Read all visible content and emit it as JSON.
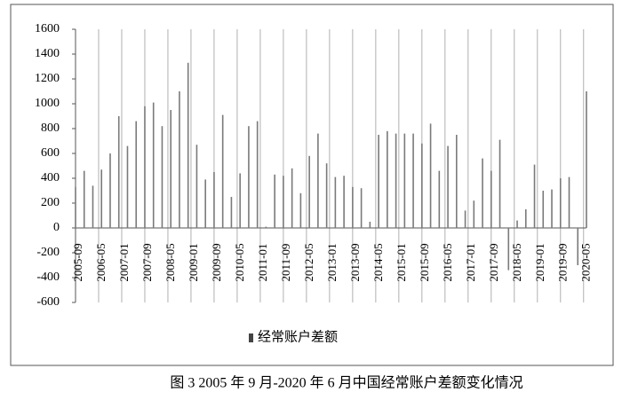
{
  "chart_data": {
    "type": "bar",
    "legend": "经常账户差额",
    "caption": "图 3 2005 年 9 月-2020 年 6 月中国经常账户差额变化情况",
    "color": "#7a7a7a",
    "grid": true,
    "legend_position": "bottom",
    "ylim": [
      -600,
      1600
    ],
    "yticks": [
      -600,
      -400,
      -200,
      0,
      200,
      400,
      600,
      800,
      1000,
      1200,
      1400,
      1600
    ],
    "categories": [
      "2005-09",
      null,
      null,
      null,
      null,
      null,
      null,
      null,
      "2006-05",
      null,
      null,
      null,
      null,
      null,
      null,
      null,
      "2007-01",
      null,
      null,
      null,
      null,
      null,
      null,
      null,
      "2007-09",
      null,
      null,
      null,
      null,
      null,
      null,
      null,
      "2008-05",
      null,
      null,
      null,
      null,
      null,
      null,
      null,
      "2009-01",
      null,
      null,
      null,
      null,
      null,
      null,
      null,
      "2009-09",
      null,
      null,
      null,
      null,
      null,
      null,
      null,
      "2010-05",
      null,
      null,
      null,
      null,
      null,
      null,
      null,
      "2011-01",
      null,
      null,
      null,
      null,
      null,
      null,
      null,
      "2011-09",
      null,
      null,
      null,
      null,
      null,
      null,
      null,
      "2012-05",
      null,
      null,
      null,
      null,
      null,
      null,
      null,
      "2013-01",
      null,
      null,
      null,
      null,
      null,
      null,
      null,
      "2013-09",
      null,
      null,
      null,
      null,
      null,
      null,
      null,
      "2014-05",
      null,
      null,
      null,
      null,
      null,
      null,
      null,
      "2015-01",
      null,
      null,
      null,
      null,
      null,
      null,
      null,
      "2015-09",
      null,
      null,
      null,
      null,
      null,
      null,
      null,
      "2016-05",
      null,
      null,
      null,
      null,
      null,
      null,
      null,
      "2017-01",
      null,
      null,
      null,
      null,
      null,
      null,
      null,
      "2017-09",
      null,
      null,
      null,
      null,
      null,
      null,
      null,
      "2018-05",
      null,
      null,
      null,
      null,
      null,
      null,
      null,
      "2019-01",
      null,
      null,
      null,
      null,
      null,
      null,
      null,
      "2019-09",
      null,
      null,
      null,
      null,
      null,
      null,
      null,
      "2020-05",
      null
    ],
    "values": [
      330,
      null,
      null,
      460,
      null,
      null,
      340,
      null,
      null,
      470,
      null,
      null,
      600,
      null,
      null,
      900,
      null,
      null,
      660,
      null,
      null,
      860,
      null,
      null,
      980,
      null,
      null,
      1010,
      null,
      null,
      820,
      null,
      null,
      950,
      null,
      null,
      1100,
      null,
      null,
      1330,
      null,
      null,
      670,
      null,
      null,
      390,
      null,
      null,
      450,
      null,
      null,
      910,
      null,
      null,
      250,
      null,
      null,
      440,
      null,
      null,
      820,
      null,
      null,
      860,
      null,
      null,
      10,
      null,
      null,
      430,
      null,
      null,
      420,
      null,
      null,
      480,
      null,
      null,
      280,
      null,
      null,
      580,
      null,
      null,
      760,
      null,
      null,
      520,
      null,
      null,
      410,
      null,
      null,
      420,
      null,
      null,
      330,
      null,
      null,
      320,
      null,
      null,
      50,
      null,
      null,
      750,
      null,
      null,
      780,
      null,
      null,
      760,
      null,
      null,
      760,
      null,
      null,
      760,
      null,
      null,
      680,
      null,
      null,
      840,
      null,
      null,
      460,
      null,
      null,
      660,
      null,
      null,
      750,
      null,
      null,
      140,
      null,
      null,
      220,
      null,
      null,
      560,
      null,
      null,
      460,
      null,
      null,
      710,
      null,
      null,
      -340,
      null,
      null,
      60,
      null,
      null,
      150,
      null,
      null,
      510,
      null,
      null,
      300,
      null,
      null,
      310,
      null,
      null,
      400,
      null,
      null,
      410,
      null,
      null,
      -300,
      null,
      null,
      1100
    ]
  }
}
